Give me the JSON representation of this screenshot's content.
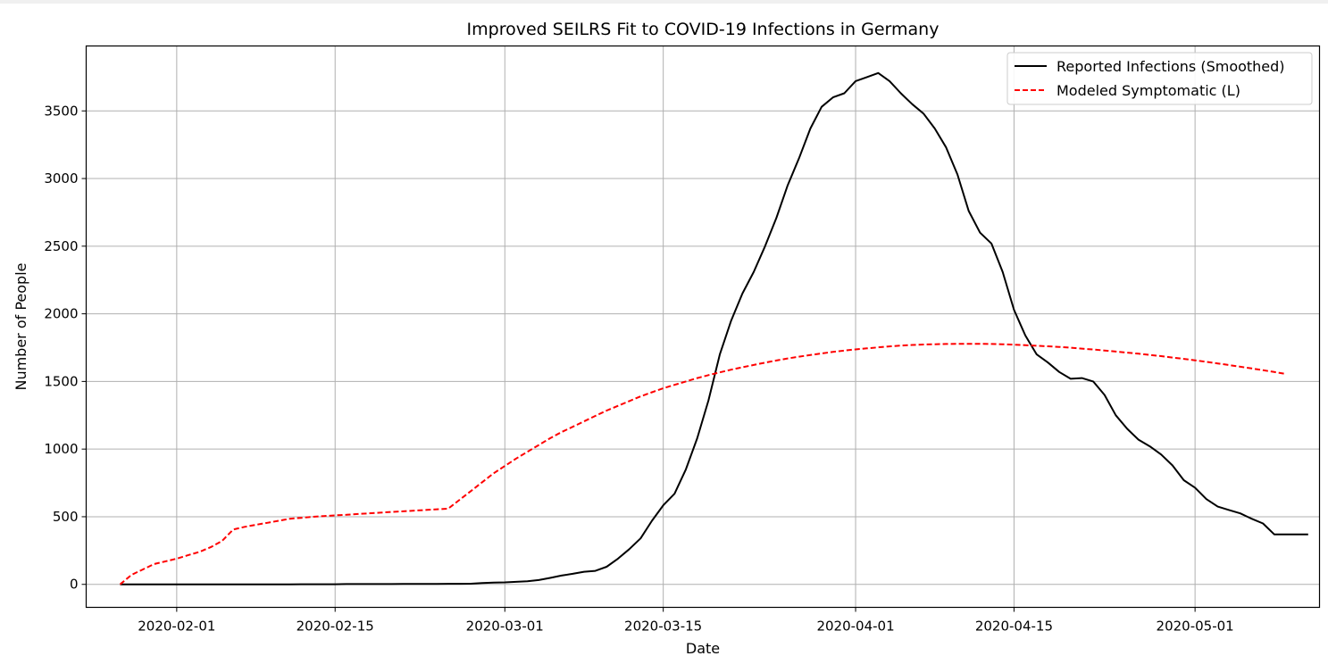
{
  "chart_data": {
    "type": "line",
    "title": "Improved SEILRS Fit to COVID-19 Infections in Germany",
    "xlabel": "Date",
    "ylabel": "Number of People",
    "x_start": "2020-01-27",
    "x_step_days": 1,
    "xlim": [
      "2020-01-24",
      "2020-05-12"
    ],
    "ylim": [
      -170,
      3980
    ],
    "xticks": [
      "2020-02-01",
      "2020-02-15",
      "2020-03-01",
      "2020-03-15",
      "2020-04-01",
      "2020-04-15",
      "2020-05-01"
    ],
    "yticks": [
      0,
      500,
      1000,
      1500,
      2000,
      2500,
      3000,
      3500
    ],
    "grid": true,
    "legend_position": "top-right",
    "series": [
      {
        "name": "Reported Infections (Smoothed)",
        "color": "#000000",
        "style": "solid",
        "values": [
          0,
          0,
          0,
          0,
          0,
          0,
          0,
          0,
          0,
          0,
          0,
          0,
          0,
          0,
          0,
          0,
          1,
          1,
          1,
          1,
          2,
          2,
          2,
          2,
          2,
          3,
          3,
          3,
          3,
          4,
          4,
          5,
          10,
          13,
          15,
          19,
          23,
          32,
          48,
          65,
          78,
          93,
          100,
          130,
          190,
          260,
          340,
          470,
          585,
          670,
          850,
          1080,
          1360,
          1700,
          1950,
          2150,
          2310,
          2500,
          2710,
          2950,
          3150,
          3370,
          3530,
          3600,
          3630,
          3720,
          3750,
          3780,
          3720,
          3630,
          3550,
          3480,
          3370,
          3230,
          3030,
          2760,
          2600,
          2520,
          2310,
          2030,
          1840,
          1700,
          1640,
          1570,
          1520,
          1525,
          1500,
          1400,
          1250,
          1150,
          1070,
          1020,
          960,
          880,
          770,
          715,
          630,
          575,
          550,
          525,
          485,
          450,
          370,
          370,
          370,
          370
        ]
      },
      {
        "name": "Modeled Symptomatic (L)",
        "color": "#ff0000",
        "style": "dashed",
        "values": [
          0,
          70,
          110,
          150,
          170,
          190,
          215,
          240,
          275,
          320,
          405,
          425,
          440,
          455,
          470,
          485,
          492,
          499,
          505,
          510,
          514,
          520,
          525,
          530,
          535,
          540,
          545,
          550,
          555,
          560,
          625,
          690,
          755,
          820,
          875,
          930,
          980,
          1030,
          1080,
          1125,
          1165,
          1205,
          1245,
          1285,
          1320,
          1355,
          1390,
          1420,
          1450,
          1475,
          1500,
          1525,
          1547,
          1567,
          1587,
          1605,
          1622,
          1639,
          1655,
          1670,
          1683,
          1695,
          1707,
          1718,
          1728,
          1737,
          1745,
          1752,
          1759,
          1765,
          1770,
          1773,
          1775,
          1777,
          1778,
          1778,
          1778,
          1777,
          1775,
          1772,
          1768,
          1764,
          1760,
          1755,
          1749,
          1743,
          1736,
          1729,
          1721,
          1713,
          1705,
          1696,
          1687,
          1677,
          1667,
          1656,
          1645,
          1633,
          1621,
          1609,
          1596,
          1583,
          1570,
          1556
        ]
      }
    ]
  }
}
